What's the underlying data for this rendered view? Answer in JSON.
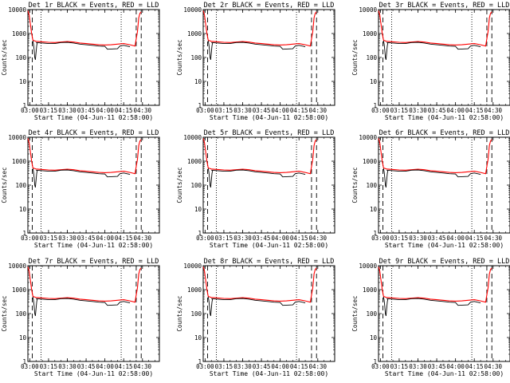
{
  "figure": {
    "xlabel": "Start Time (04-Jun-11 02:58:00)",
    "ylabel": "Counts/sec"
  },
  "chart_data": {
    "type": "line",
    "xscale": "linear",
    "yscale": "log",
    "x_range": [
      "02:58:30",
      "04:43:30"
    ],
    "ylim": [
      1,
      10000
    ],
    "x_ticks": [
      "03:00",
      "03:15",
      "03:30",
      "03:45",
      "04:00",
      "04:15",
      "04:30"
    ],
    "y_ticks": [
      "1",
      "10",
      "100",
      "1000",
      "10000"
    ],
    "dotted_markers": [
      "03:09",
      "04:13"
    ],
    "dashed_markers": [
      "03:02",
      "04:25",
      "04:29"
    ],
    "legend_text": "BLACK = Events, RED = LLD",
    "panels": [
      {
        "title": "Det 1r BLACK = Events, RED = LLD"
      },
      {
        "title": "Det 2r BLACK = Events, RED = LLD"
      },
      {
        "title": "Det 3r BLACK = Events, RED = LLD"
      },
      {
        "title": "Det 4r BLACK = Events, RED = LLD"
      },
      {
        "title": "Det 5r BLACK = Events, RED = LLD"
      },
      {
        "title": "Det 6r BLACK = Events, RED = LLD"
      },
      {
        "title": "Det 7r BLACK = Events, RED = LLD"
      },
      {
        "title": "Det 8r BLACK = Events, RED = LLD"
      },
      {
        "title": "Det 9r BLACK = Events, RED = LLD"
      }
    ],
    "series": [
      {
        "color": "#ff0000",
        "x": [
          "02:58:30",
          "02:59:30",
          "03:00:30",
          "03:01:30",
          "03:02:30",
          "03:05",
          "03:10",
          "03:15",
          "03:20",
          "03:25",
          "03:30",
          "03:35",
          "03:40",
          "03:45",
          "03:50",
          "03:55",
          "04:00",
          "04:05",
          "04:10",
          "04:15",
          "04:20",
          "04:24",
          "04:26",
          "04:27",
          "04:28",
          "04:29"
        ],
        "y": [
          9000,
          6000,
          2500,
          1000,
          520,
          470,
          450,
          430,
          420,
          440,
          460,
          440,
          400,
          380,
          360,
          340,
          330,
          340,
          360,
          380,
          340,
          300,
          1200,
          4500,
          7000,
          8000
        ]
      },
      {
        "color": "#000000",
        "x": [
          "03:05",
          "03:10",
          "03:15",
          "03:20",
          "03:25",
          "03:30",
          "03:35",
          "03:40",
          "03:45",
          "03:50",
          "03:55",
          "04:00",
          "04:02",
          "04:10",
          "04:12",
          "04:15",
          "04:20"
        ],
        "y": [
          420,
          400,
          380,
          380,
          420,
          430,
          400,
          360,
          340,
          320,
          300,
          290,
          220,
          230,
          300,
          320,
          280
        ]
      },
      {
        "color": "#000000",
        "x": [
          "03:02:30",
          "03:03",
          "03:03:30",
          "03:04",
          "03:04:30",
          "03:05:30",
          "03:06"
        ],
        "y": [
          500,
          350,
          200,
          100,
          80,
          300,
          420
        ]
      }
    ]
  }
}
